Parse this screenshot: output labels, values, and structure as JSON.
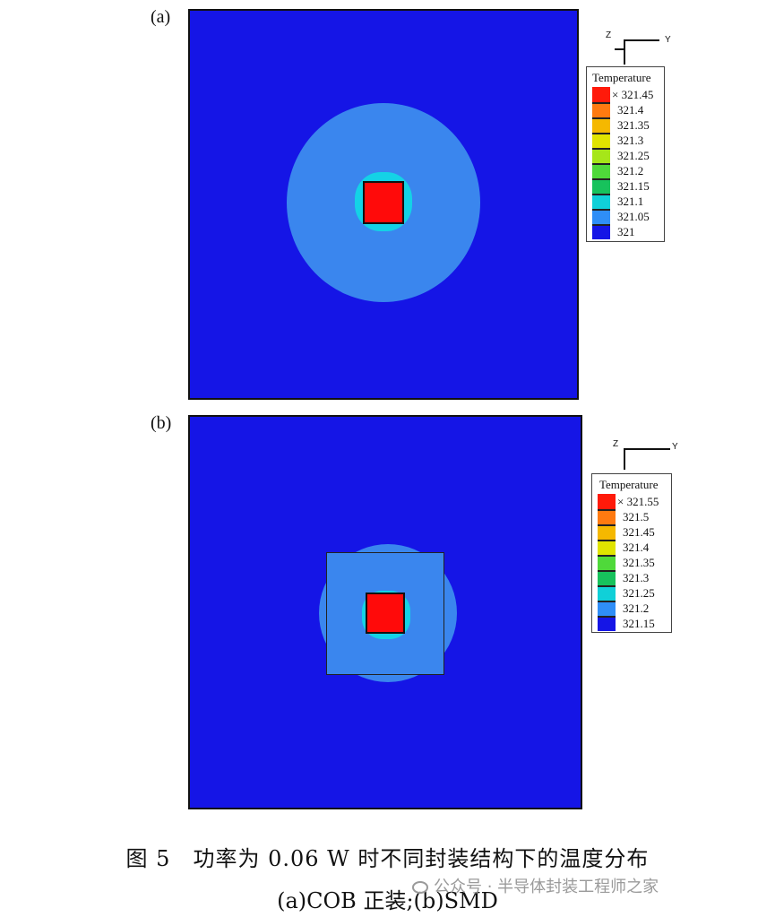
{
  "panels": [
    {
      "label": "(a)",
      "legend": {
        "title": "Temperature",
        "levels": [
          "321.45",
          "321.4",
          "321.35",
          "321.3",
          "321.25",
          "321.2",
          "321.15",
          "321.1",
          "321.05",
          "321"
        ],
        "colors": [
          "#ff1a0a",
          "#ff7a10",
          "#f5b800",
          "#e0e400",
          "#a6e619",
          "#4fd93a",
          "#17c25c",
          "#10d0d8",
          "#2f8ef7",
          "#1515e6"
        ]
      },
      "axis": {
        "z": "Z",
        "y": "Y"
      }
    },
    {
      "label": "(b)",
      "legend": {
        "title": "Temperature",
        "levels": [
          "321.55",
          "321.5",
          "321.45",
          "321.4",
          "321.35",
          "321.3",
          "321.25",
          "321.2",
          "321.15"
        ],
        "colors": [
          "#ff1a0a",
          "#ff7a10",
          "#f5b800",
          "#e0e400",
          "#4fd93a",
          "#17c25c",
          "#10d0d8",
          "#2f8ef7",
          "#1515e6"
        ]
      },
      "axis": {
        "z": "Z",
        "y": "Y"
      }
    }
  ],
  "caption": {
    "line1": "图 5　功率为 0.06 W 时不同封装结构下的温度分布",
    "line2": "(a)COB 正装;(b)SMD"
  },
  "watermark": "公众号 · 半导体封装工程师之家"
}
